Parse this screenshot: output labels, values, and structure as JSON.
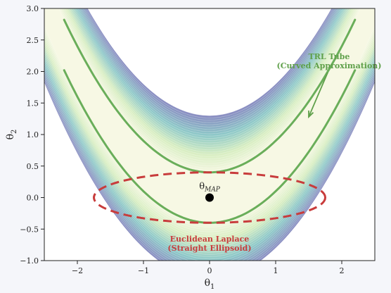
{
  "chart_data": {
    "type": "contour",
    "xlabel": "θ1",
    "ylabel": "θ2",
    "xlim": [
      -2.5,
      2.5
    ],
    "ylim": [
      -1.0,
      3.0
    ],
    "xticks": [
      -2,
      -1,
      0,
      1,
      2
    ],
    "yticks": [
      -1.0,
      -0.5,
      0.0,
      0.5,
      1.0,
      1.5,
      2.0,
      2.5,
      3.0
    ],
    "xtick_labels": [
      "−2",
      "−1",
      "0",
      "1",
      "2"
    ],
    "ytick_labels": [
      "−1.0",
      "−0.5",
      "0.0",
      "0.5",
      "1.0",
      "1.5",
      "2.0",
      "2.5",
      "3.0"
    ],
    "density": {
      "description_function": "banana: exp(-((θ2 - θ1^2/2)^2/0.18))",
      "band_half_widths": [
        0.4,
        1.3
      ],
      "colors": {
        "center": "#f7f8e4",
        "mid": "#d8eec2",
        "edge_teal": "#8ec9c8",
        "edge_purple": "#8a8fc2"
      }
    },
    "trl_tube": {
      "x_range": [
        -2.2,
        2.2
      ],
      "curves": [
        {
          "offset": 0.4,
          "description": "θ2 = θ1^2/2 + 0.4"
        },
        {
          "offset": -0.4,
          "description": "θ2 = θ1^2/2 - 0.4"
        }
      ],
      "color": "#6aae5a"
    },
    "laplace_ellipse": {
      "center": [
        0.0,
        0.0
      ],
      "rx": 1.75,
      "ry": 0.4,
      "color": "#c83c3c",
      "dash": true
    },
    "map_point": {
      "x": 0.0,
      "y": 0.0,
      "label": "θMAP",
      "color": "#000000"
    },
    "annotations": [
      {
        "text_lines": [
          "TRL Tube",
          "(Curved Approximation)"
        ],
        "color": "#5fa04a",
        "arrow_to": [
          1.5,
          1.28
        ]
      },
      {
        "text_lines": [
          "Euclidean Laplace",
          "(Straight Ellipsoid)"
        ],
        "color": "#c83c3c"
      }
    ]
  }
}
